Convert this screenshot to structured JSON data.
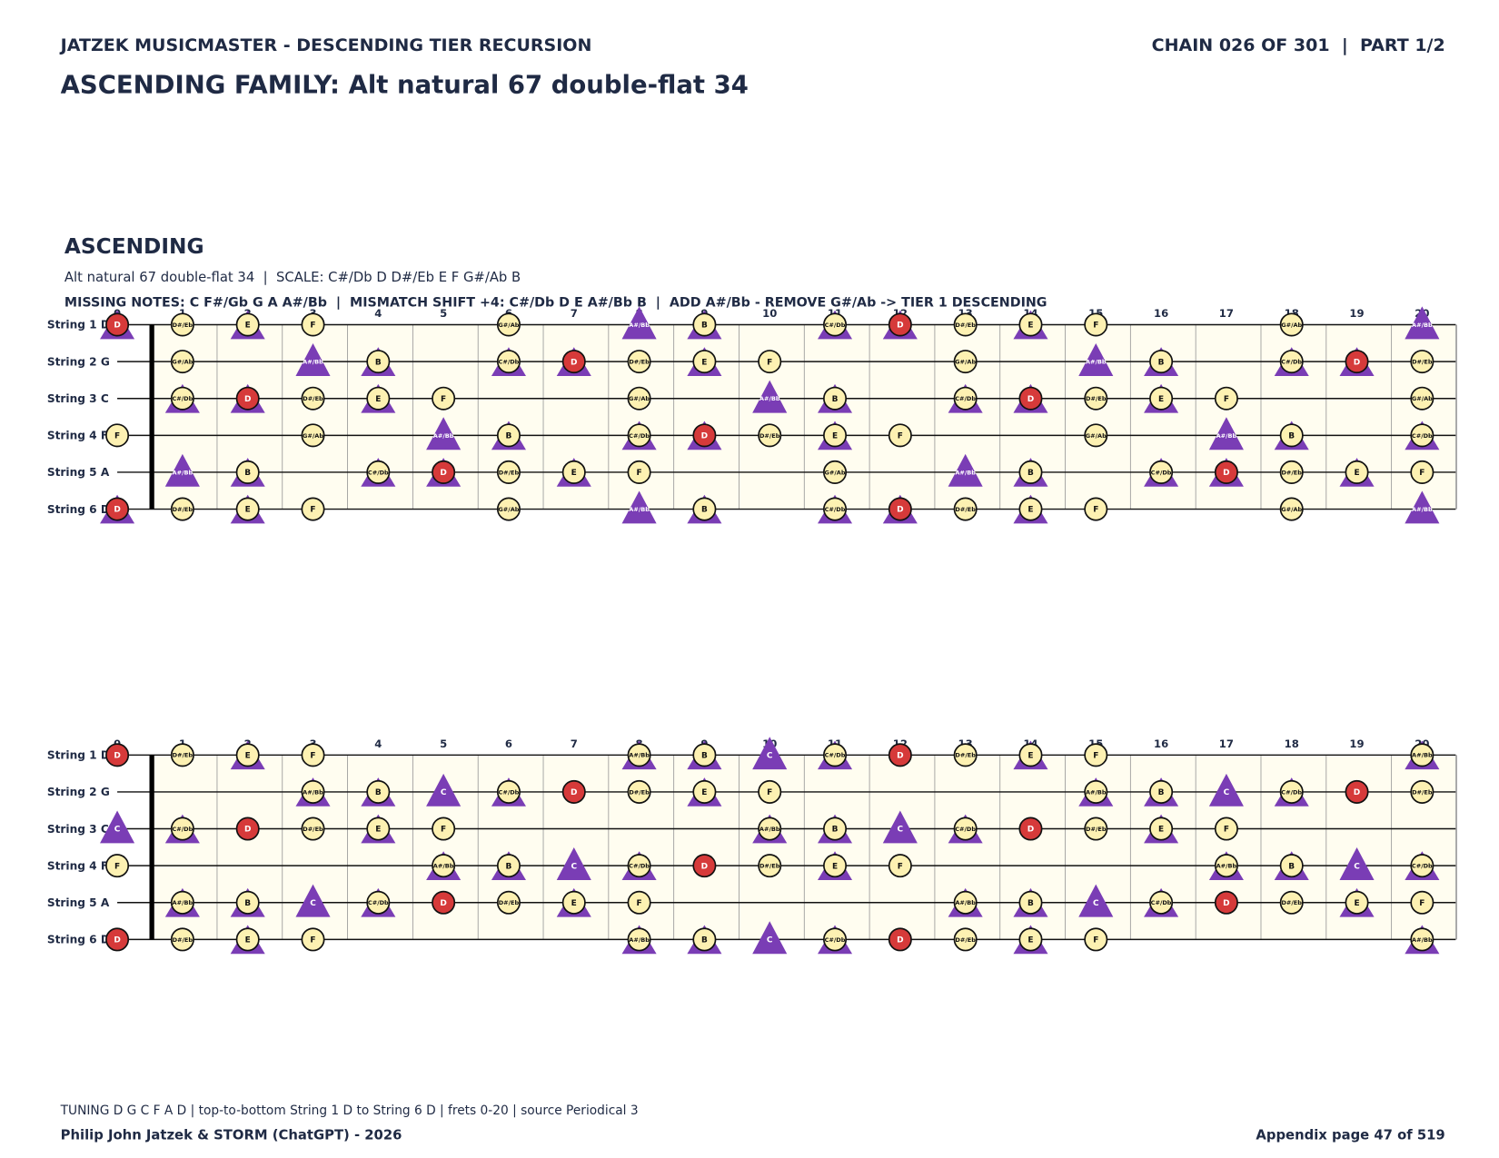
{
  "header": {
    "left": "JATZEK MUSICMASTER - DESCENDING TIER RECURSION",
    "right": "CHAIN 026 OF 301  |  PART 1/2"
  },
  "title": "ASCENDING FAMILY: Alt natural 67 double-flat 34",
  "section": {
    "heading": "ASCENDING",
    "subtitle": "Alt natural 67 double-flat 34  |  SCALE: C#/Db D D#/Eb E F G#/Ab B",
    "missing": "MISSING NOTES: C F#/Gb G A A#/Bb  |  MISMATCH SHIFT +4: C#/Db D E A#/Bb B  |  ADD A#/Bb - REMOVE G#/Ab -> TIER 1 DESCENDING"
  },
  "frets": [
    0,
    1,
    2,
    3,
    4,
    5,
    6,
    7,
    8,
    9,
    10,
    11,
    12,
    13,
    14,
    15,
    16,
    17,
    18,
    19,
    20
  ],
  "boards": [
    {
      "strings": [
        {
          "label": "String 1 D",
          "notes": [
            [
              0,
              "D",
              "rt"
            ],
            [
              1,
              "D#/Eb",
              "c"
            ],
            [
              2,
              "E",
              "ct"
            ],
            [
              3,
              "F",
              "c"
            ],
            [
              6,
              "G#/Ab",
              "c"
            ],
            [
              8,
              "A#/Bb",
              "t"
            ],
            [
              9,
              "B",
              "ct"
            ],
            [
              11,
              "C#/Db",
              "ct"
            ],
            [
              12,
              "D",
              "rt"
            ],
            [
              13,
              "D#/Eb",
              "c"
            ],
            [
              14,
              "E",
              "ct"
            ],
            [
              15,
              "F",
              "c"
            ],
            [
              18,
              "G#/Ab",
              "c"
            ],
            [
              20,
              "A#/Bb",
              "t"
            ]
          ]
        },
        {
          "label": "String 2 G",
          "notes": [
            [
              1,
              "G#/Ab",
              "c"
            ],
            [
              3,
              "A#/Bb",
              "t"
            ],
            [
              4,
              "B",
              "ct"
            ],
            [
              6,
              "C#/Db",
              "ct"
            ],
            [
              7,
              "D",
              "rt"
            ],
            [
              8,
              "D#/Eb",
              "c"
            ],
            [
              9,
              "E",
              "ct"
            ],
            [
              10,
              "F",
              "c"
            ],
            [
              13,
              "G#/Ab",
              "c"
            ],
            [
              15,
              "A#/Bb",
              "t"
            ],
            [
              16,
              "B",
              "ct"
            ],
            [
              18,
              "C#/Db",
              "ct"
            ],
            [
              19,
              "D",
              "rt"
            ],
            [
              20,
              "D#/Eb",
              "c"
            ]
          ]
        },
        {
          "label": "String 3 C",
          "notes": [
            [
              1,
              "C#/Db",
              "ct"
            ],
            [
              2,
              "D",
              "rt"
            ],
            [
              3,
              "D#/Eb",
              "c"
            ],
            [
              4,
              "E",
              "ct"
            ],
            [
              5,
              "F",
              "c"
            ],
            [
              8,
              "G#/Ab",
              "c"
            ],
            [
              10,
              "A#/Bb",
              "t"
            ],
            [
              11,
              "B",
              "ct"
            ],
            [
              13,
              "C#/Db",
              "ct"
            ],
            [
              14,
              "D",
              "rt"
            ],
            [
              15,
              "D#/Eb",
              "c"
            ],
            [
              16,
              "E",
              "ct"
            ],
            [
              17,
              "F",
              "c"
            ],
            [
              20,
              "G#/Ab",
              "c"
            ]
          ]
        },
        {
          "label": "String 4 F",
          "notes": [
            [
              0,
              "F",
              "c"
            ],
            [
              3,
              "G#/Ab",
              "c"
            ],
            [
              5,
              "A#/Bb",
              "t"
            ],
            [
              6,
              "B",
              "ct"
            ],
            [
              8,
              "C#/Db",
              "ct"
            ],
            [
              9,
              "D",
              "rt"
            ],
            [
              10,
              "D#/Eb",
              "c"
            ],
            [
              11,
              "E",
              "ct"
            ],
            [
              12,
              "F",
              "c"
            ],
            [
              15,
              "G#/Ab",
              "c"
            ],
            [
              17,
              "A#/Bb",
              "t"
            ],
            [
              18,
              "B",
              "ct"
            ],
            [
              20,
              "C#/Db",
              "ct"
            ]
          ]
        },
        {
          "label": "String 5 A",
          "notes": [
            [
              1,
              "A#/Bb",
              "t"
            ],
            [
              2,
              "B",
              "ct"
            ],
            [
              4,
              "C#/Db",
              "ct"
            ],
            [
              5,
              "D",
              "rt"
            ],
            [
              6,
              "D#/Eb",
              "c"
            ],
            [
              7,
              "E",
              "ct"
            ],
            [
              8,
              "F",
              "c"
            ],
            [
              11,
              "G#/Ab",
              "c"
            ],
            [
              13,
              "A#/Bb",
              "t"
            ],
            [
              14,
              "B",
              "ct"
            ],
            [
              16,
              "C#/Db",
              "ct"
            ],
            [
              17,
              "D",
              "rt"
            ],
            [
              18,
              "D#/Eb",
              "c"
            ],
            [
              19,
              "E",
              "ct"
            ],
            [
              20,
              "F",
              "c"
            ]
          ]
        },
        {
          "label": "String 6 D",
          "notes": [
            [
              0,
              "D",
              "rt"
            ],
            [
              1,
              "D#/Eb",
              "c"
            ],
            [
              2,
              "E",
              "ct"
            ],
            [
              3,
              "F",
              "c"
            ],
            [
              6,
              "G#/Ab",
              "c"
            ],
            [
              8,
              "A#/Bb",
              "t"
            ],
            [
              9,
              "B",
              "ct"
            ],
            [
              11,
              "C#/Db",
              "ct"
            ],
            [
              12,
              "D",
              "rt"
            ],
            [
              13,
              "D#/Eb",
              "c"
            ],
            [
              14,
              "E",
              "ct"
            ],
            [
              15,
              "F",
              "c"
            ],
            [
              18,
              "G#/Ab",
              "c"
            ],
            [
              20,
              "A#/Bb",
              "t"
            ]
          ]
        }
      ]
    },
    {
      "strings": [
        {
          "label": "String 1 D",
          "notes": [
            [
              0,
              "D",
              "r"
            ],
            [
              1,
              "D#/Eb",
              "c"
            ],
            [
              2,
              "E",
              "ct"
            ],
            [
              3,
              "F",
              "c"
            ],
            [
              8,
              "A#/Bb",
              "ct"
            ],
            [
              9,
              "B",
              "ct"
            ],
            [
              10,
              "C",
              "t"
            ],
            [
              11,
              "C#/Db",
              "ct"
            ],
            [
              12,
              "D",
              "r"
            ],
            [
              13,
              "D#/Eb",
              "c"
            ],
            [
              14,
              "E",
              "ct"
            ],
            [
              15,
              "F",
              "c"
            ],
            [
              20,
              "A#/Bb",
              "ct"
            ]
          ]
        },
        {
          "label": "String 2 G",
          "notes": [
            [
              3,
              "A#/Bb",
              "ct"
            ],
            [
              4,
              "B",
              "ct"
            ],
            [
              5,
              "C",
              "t"
            ],
            [
              6,
              "C#/Db",
              "ct"
            ],
            [
              7,
              "D",
              "r"
            ],
            [
              8,
              "D#/Eb",
              "c"
            ],
            [
              9,
              "E",
              "ct"
            ],
            [
              10,
              "F",
              "c"
            ],
            [
              15,
              "A#/Bb",
              "ct"
            ],
            [
              16,
              "B",
              "ct"
            ],
            [
              17,
              "C",
              "t"
            ],
            [
              18,
              "C#/Db",
              "ct"
            ],
            [
              19,
              "D",
              "r"
            ],
            [
              20,
              "D#/Eb",
              "c"
            ]
          ]
        },
        {
          "label": "String 3 C",
          "notes": [
            [
              0,
              "C",
              "t"
            ],
            [
              1,
              "C#/Db",
              "ct"
            ],
            [
              2,
              "D",
              "r"
            ],
            [
              3,
              "D#/Eb",
              "c"
            ],
            [
              4,
              "E",
              "ct"
            ],
            [
              5,
              "F",
              "c"
            ],
            [
              10,
              "A#/Bb",
              "ct"
            ],
            [
              11,
              "B",
              "ct"
            ],
            [
              12,
              "C",
              "t"
            ],
            [
              13,
              "C#/Db",
              "ct"
            ],
            [
              14,
              "D",
              "r"
            ],
            [
              15,
              "D#/Eb",
              "c"
            ],
            [
              16,
              "E",
              "ct"
            ],
            [
              17,
              "F",
              "c"
            ]
          ]
        },
        {
          "label": "String 4 F",
          "notes": [
            [
              0,
              "F",
              "c"
            ],
            [
              5,
              "A#/Bb",
              "ct"
            ],
            [
              6,
              "B",
              "ct"
            ],
            [
              7,
              "C",
              "t"
            ],
            [
              8,
              "C#/Db",
              "ct"
            ],
            [
              9,
              "D",
              "r"
            ],
            [
              10,
              "D#/Eb",
              "c"
            ],
            [
              11,
              "E",
              "ct"
            ],
            [
              12,
              "F",
              "c"
            ],
            [
              17,
              "A#/Bb",
              "ct"
            ],
            [
              18,
              "B",
              "ct"
            ],
            [
              19,
              "C",
              "t"
            ],
            [
              20,
              "C#/Db",
              "ct"
            ]
          ]
        },
        {
          "label": "String 5 A",
          "notes": [
            [
              1,
              "A#/Bb",
              "ct"
            ],
            [
              2,
              "B",
              "ct"
            ],
            [
              3,
              "C",
              "t"
            ],
            [
              4,
              "C#/Db",
              "ct"
            ],
            [
              5,
              "D",
              "r"
            ],
            [
              6,
              "D#/Eb",
              "c"
            ],
            [
              7,
              "E",
              "ct"
            ],
            [
              8,
              "F",
              "c"
            ],
            [
              13,
              "A#/Bb",
              "ct"
            ],
            [
              14,
              "B",
              "ct"
            ],
            [
              15,
              "C",
              "t"
            ],
            [
              16,
              "C#/Db",
              "ct"
            ],
            [
              17,
              "D",
              "r"
            ],
            [
              18,
              "D#/Eb",
              "c"
            ],
            [
              19,
              "E",
              "ct"
            ],
            [
              20,
              "F",
              "c"
            ]
          ]
        },
        {
          "label": "String 6 D",
          "notes": [
            [
              0,
              "D",
              "r"
            ],
            [
              1,
              "D#/Eb",
              "c"
            ],
            [
              2,
              "E",
              "ct"
            ],
            [
              3,
              "F",
              "c"
            ],
            [
              8,
              "A#/Bb",
              "ct"
            ],
            [
              9,
              "B",
              "ct"
            ],
            [
              10,
              "C",
              "t"
            ],
            [
              11,
              "C#/Db",
              "ct"
            ],
            [
              12,
              "D",
              "r"
            ],
            [
              13,
              "D#/Eb",
              "c"
            ],
            [
              14,
              "E",
              "ct"
            ],
            [
              15,
              "F",
              "c"
            ],
            [
              20,
              "A#/Bb",
              "ct"
            ]
          ]
        }
      ]
    }
  ],
  "footer": {
    "note": "TUNING D G C F A D | top-to-bottom String 1 D to String 6 D | frets 0-20 | source Periodical 3",
    "credit": "Philip John Jatzek & STORM (ChatGPT) - 2026",
    "page": "Appendix page 47 of 519"
  }
}
